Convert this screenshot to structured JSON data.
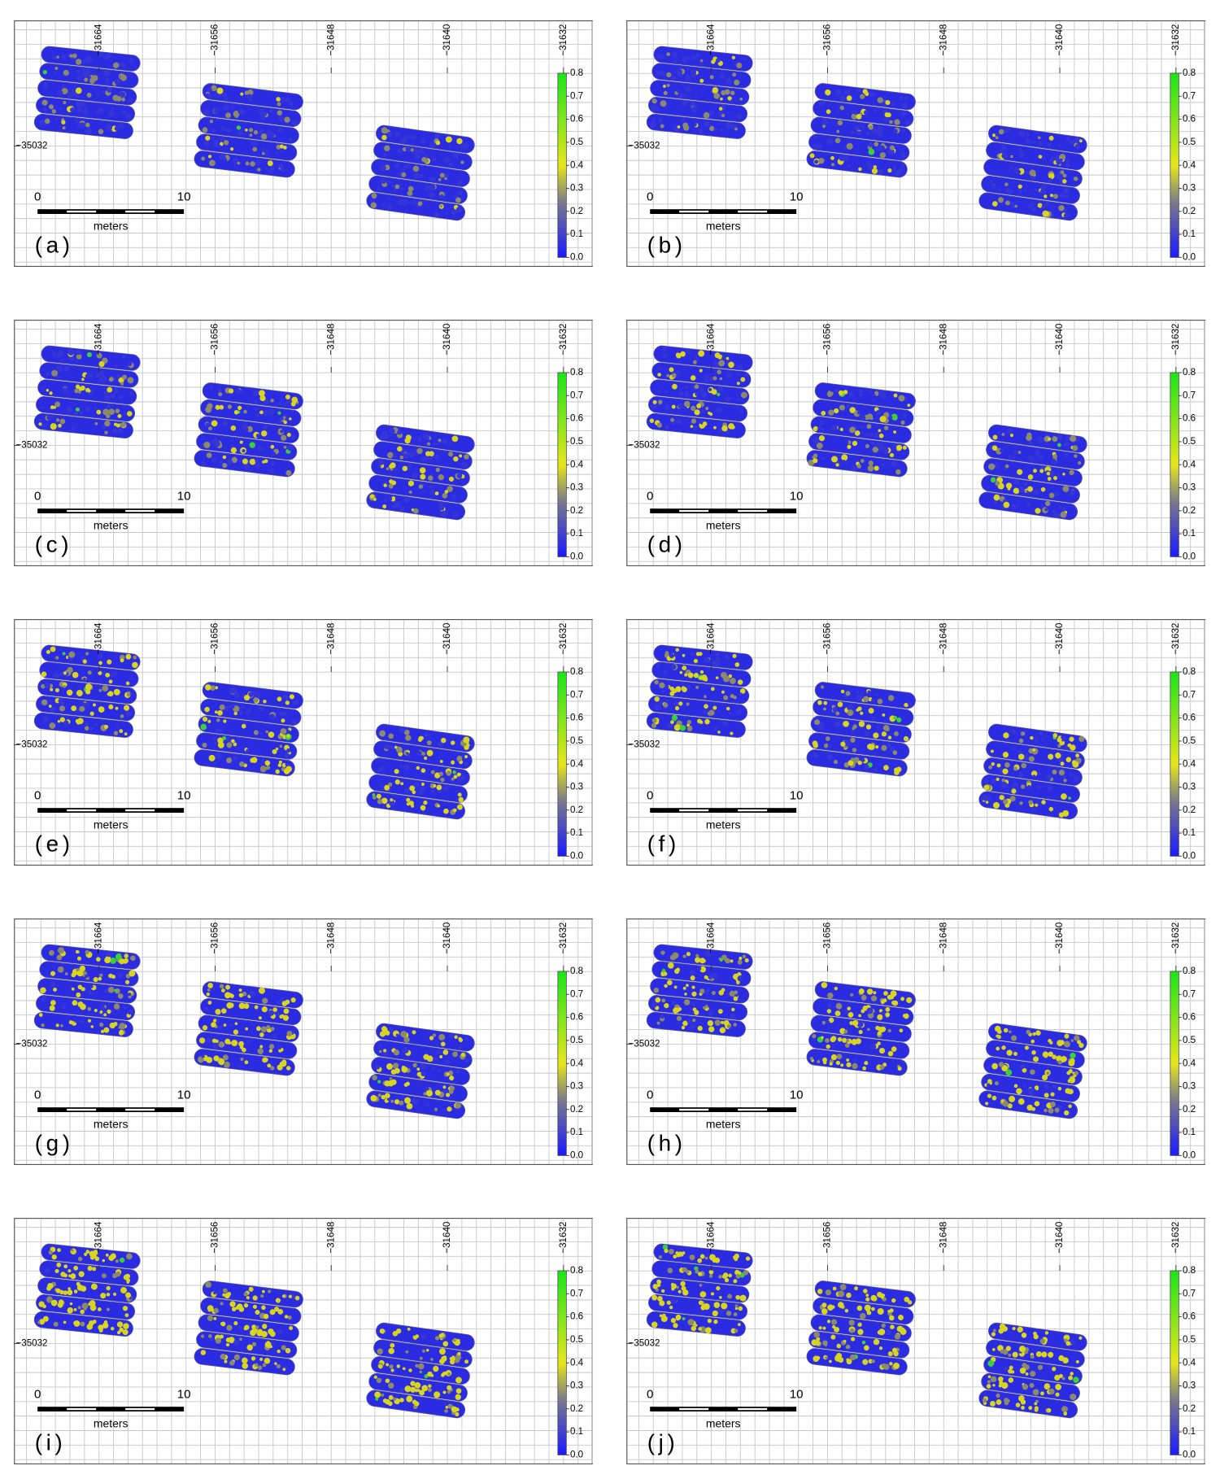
{
  "panels": [
    {
      "label": "(a)"
    },
    {
      "label": "(b)"
    },
    {
      "label": "(c)"
    },
    {
      "label": "(d)"
    },
    {
      "label": "(e)"
    },
    {
      "label": "(f)"
    },
    {
      "label": "(g)"
    },
    {
      "label": "(h)"
    },
    {
      "label": "(i)"
    },
    {
      "label": "(j)"
    }
  ],
  "x_ticks": [
    {
      "value": -31664,
      "label": "−31664"
    },
    {
      "value": -31656,
      "label": "−31656"
    },
    {
      "value": -31648,
      "label": "−31648"
    },
    {
      "value": -31640,
      "label": "−31640"
    },
    {
      "value": -31632,
      "label": "−31632"
    }
  ],
  "y_ticks": [
    {
      "value": -35032,
      "label": "−35032"
    }
  ],
  "scale_bar": {
    "start": 0,
    "end": 10,
    "unit": "meters"
  },
  "colorbar": {
    "range": [
      0,
      0.8
    ],
    "ticks": [
      {
        "value": 0,
        "label": "0.0"
      },
      {
        "value": 0.1,
        "label": "0.1"
      },
      {
        "value": 0.2,
        "label": "0.2"
      },
      {
        "value": 0.3,
        "label": "0.3"
      },
      {
        "value": 0.4,
        "label": "0.4"
      },
      {
        "value": 0.5,
        "label": "0.5"
      },
      {
        "value": 0.6,
        "label": "0.6"
      },
      {
        "value": 0.7,
        "label": "0.7"
      },
      {
        "value": 0.8,
        "label": "0.8"
      }
    ]
  }
}
